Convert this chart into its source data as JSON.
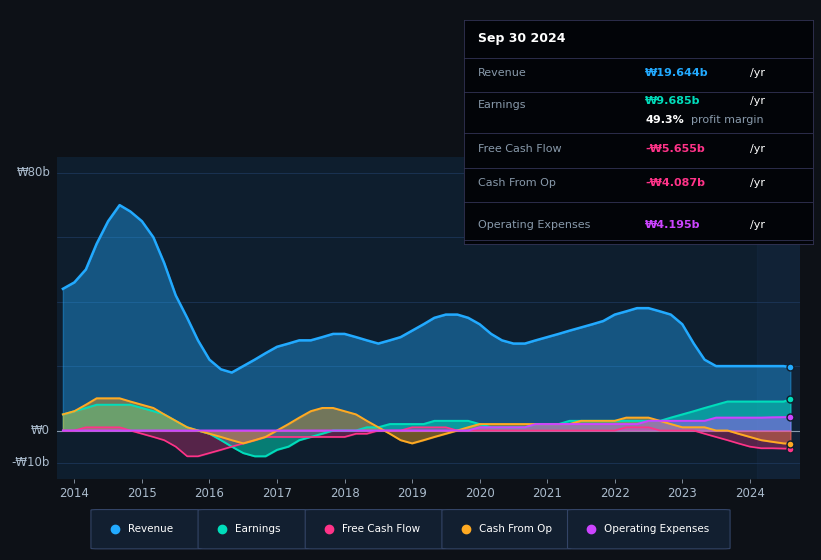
{
  "bg_color": "#0d1117",
  "plot_bg_color": "#0e1e2e",
  "grid_color": "#1e3a5f",
  "zero_line_color": "#8899aa",
  "text_color": "#aabbcc",
  "series_colors": {
    "Revenue": "#22aaff",
    "Earnings": "#00ddbb",
    "Free Cash Flow": "#ff3388",
    "Cash From Op": "#ffaa22",
    "Operating Expenses": "#cc44ff"
  },
  "x_data": [
    2013.83,
    2014.0,
    2014.17,
    2014.33,
    2014.5,
    2014.67,
    2014.83,
    2015.0,
    2015.17,
    2015.33,
    2015.5,
    2015.67,
    2015.83,
    2016.0,
    2016.17,
    2016.33,
    2016.5,
    2016.67,
    2016.83,
    2017.0,
    2017.17,
    2017.33,
    2017.5,
    2017.67,
    2017.83,
    2018.0,
    2018.17,
    2018.33,
    2018.5,
    2018.67,
    2018.83,
    2019.0,
    2019.17,
    2019.33,
    2019.5,
    2019.67,
    2019.83,
    2020.0,
    2020.17,
    2020.33,
    2020.5,
    2020.67,
    2020.83,
    2021.0,
    2021.17,
    2021.33,
    2021.5,
    2021.67,
    2021.83,
    2022.0,
    2022.17,
    2022.33,
    2022.5,
    2022.67,
    2022.83,
    2023.0,
    2023.17,
    2023.33,
    2023.5,
    2023.67,
    2023.83,
    2024.0,
    2024.17,
    2024.33,
    2024.5,
    2024.6
  ],
  "Revenue": [
    44,
    46,
    50,
    58,
    65,
    70,
    68,
    65,
    60,
    52,
    42,
    35,
    28,
    22,
    19,
    18,
    20,
    22,
    24,
    26,
    27,
    28,
    28,
    29,
    30,
    30,
    29,
    28,
    27,
    28,
    29,
    31,
    33,
    35,
    36,
    36,
    35,
    33,
    30,
    28,
    27,
    27,
    28,
    29,
    30,
    31,
    32,
    33,
    34,
    36,
    37,
    38,
    38,
    37,
    36,
    33,
    27,
    22,
    20,
    20,
    20,
    20,
    20,
    20,
    20,
    19.644
  ],
  "Earnings": [
    5,
    6,
    7,
    8,
    8,
    8,
    8,
    7,
    6,
    5,
    3,
    1,
    0,
    -1,
    -3,
    -5,
    -7,
    -8,
    -8,
    -6,
    -5,
    -3,
    -2,
    -1,
    0,
    0,
    0,
    1,
    1,
    2,
    2,
    2,
    2,
    3,
    3,
    3,
    3,
    2,
    1,
    1,
    1,
    1,
    2,
    2,
    2,
    3,
    3,
    3,
    3,
    3,
    3,
    3,
    3,
    3,
    4,
    5,
    6,
    7,
    8,
    9,
    9,
    9,
    9,
    9,
    9,
    9.685
  ],
  "Free_Cash_Flow": [
    0,
    0,
    1,
    1,
    1,
    1,
    0,
    -1,
    -2,
    -3,
    -5,
    -8,
    -8,
    -7,
    -6,
    -5,
    -4,
    -3,
    -2,
    -2,
    -2,
    -2,
    -2,
    -2,
    -2,
    -2,
    -1,
    -1,
    0,
    0,
    0,
    1,
    1,
    1,
    1,
    0,
    0,
    0,
    0,
    0,
    0,
    0,
    0,
    0,
    0,
    0,
    0,
    0,
    0,
    0,
    1,
    1,
    1,
    0,
    0,
    0,
    0,
    -1,
    -2,
    -3,
    -4,
    -5,
    -5.5,
    -5.5,
    -5.6,
    -5.655
  ],
  "Cash_From_Op": [
    5,
    6,
    8,
    10,
    10,
    10,
    9,
    8,
    7,
    5,
    3,
    1,
    0,
    -1,
    -2,
    -3,
    -4,
    -3,
    -2,
    0,
    2,
    4,
    6,
    7,
    7,
    6,
    5,
    3,
    1,
    -1,
    -3,
    -4,
    -3,
    -2,
    -1,
    0,
    1,
    2,
    2,
    2,
    2,
    2,
    2,
    2,
    2,
    2,
    3,
    3,
    3,
    3,
    4,
    4,
    4,
    3,
    2,
    1,
    1,
    1,
    0,
    0,
    -1,
    -2,
    -3,
    -3.5,
    -4,
    -4.087
  ],
  "Operating_Expenses": [
    0,
    0,
    0,
    0,
    0,
    0,
    0,
    0,
    0,
    0,
    0,
    0,
    0,
    0,
    0,
    0,
    0,
    0,
    0,
    0,
    0,
    0,
    0,
    0,
    0,
    0,
    0,
    0,
    0,
    0,
    0,
    0,
    0,
    0,
    0,
    0,
    0,
    1,
    1,
    1,
    1,
    1,
    2,
    2,
    2,
    2,
    2,
    2,
    2,
    2,
    2,
    2,
    3,
    3,
    3,
    3,
    3,
    3,
    4,
    4,
    4,
    4,
    4,
    4.1,
    4.15,
    4.195
  ],
  "xlim": [
    2013.75,
    2024.75
  ],
  "ylim": [
    -15,
    85
  ],
  "highlight_start": 2024.1,
  "ytick_positions": [
    -10,
    0,
    80
  ],
  "ytick_labels": [
    "-₩10b",
    "₩0",
    "₩80b"
  ],
  "xtick_years": [
    2014,
    2015,
    2016,
    2017,
    2018,
    2019,
    2020,
    2021,
    2022,
    2023,
    2024
  ]
}
